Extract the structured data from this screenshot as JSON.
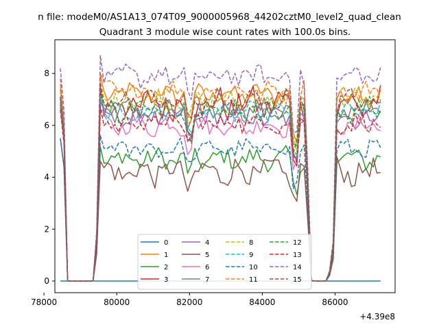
{
  "suptitle": "n file: modeM0/AS1A13_074T09_9000005968_44202cztM0_level2_quad_clean",
  "chart_data": {
    "type": "line",
    "title": "Quadrant 3 module wise count rates with 100.0s bins.",
    "xlabel": "",
    "ylabel": "",
    "x_offset_label": "+4.39e8",
    "xlim": [
      78300,
      87650
    ],
    "ylim": [
      -0.45,
      9.3
    ],
    "xticks": [
      78000,
      80000,
      82000,
      84000,
      86000
    ],
    "xtick_labels": [
      "78000",
      "80000",
      "82000",
      "84000",
      "86000"
    ],
    "yticks": [
      0,
      2,
      4,
      6,
      8
    ],
    "ytick_labels": [
      "0",
      "2",
      "4",
      "6",
      "8"
    ],
    "grid": false,
    "legend": {
      "placement": "lower center",
      "columns": 4
    },
    "x_start": 78450,
    "x_step": 100,
    "point_count": 89,
    "gaps": [
      [
        78650,
        79350
      ],
      [
        85350,
        85750
      ]
    ],
    "series": [
      {
        "name": "0",
        "color": "#1f77b4",
        "dash": "solid",
        "level": 0.0,
        "amp": 0.0,
        "start": 5.6
      },
      {
        "name": "1",
        "color": "#ff7f0e",
        "dash": "solid",
        "level": 7.2,
        "amp": 0.35,
        "start": 7.6
      },
      {
        "name": "2",
        "color": "#2ca02c",
        "dash": "solid",
        "level": 4.7,
        "amp": 0.35,
        "start": 7.0
      },
      {
        "name": "3",
        "color": "#d62728",
        "dash": "solid",
        "level": 6.8,
        "amp": 0.55,
        "start": 6.8
      },
      {
        "name": "4",
        "color": "#9467bd",
        "dash": "solid",
        "level": 6.3,
        "amp": 0.35,
        "start": 7.4
      },
      {
        "name": "5",
        "color": "#8c564b",
        "dash": "solid",
        "level": 4.2,
        "amp": 0.45,
        "start": 5.5
      },
      {
        "name": "6",
        "color": "#e377c2",
        "dash": "solid",
        "level": 6.0,
        "amp": 0.35,
        "start": 6.9
      },
      {
        "name": "7",
        "color": "#7f7f7f",
        "dash": "solid",
        "level": 6.6,
        "amp": 0.35,
        "start": 7.0
      },
      {
        "name": "8",
        "color": "#bcbd22",
        "dash": "dashed",
        "level": 7.0,
        "amp": 0.35,
        "start": 7.3
      },
      {
        "name": "9",
        "color": "#17becf",
        "dash": "dashed",
        "level": 6.5,
        "amp": 0.3,
        "start": 6.7
      },
      {
        "name": "10",
        "color": "#1f77b4",
        "dash": "dashed",
        "level": 5.1,
        "amp": 0.3,
        "start": 5.5
      },
      {
        "name": "11",
        "color": "#ff7f0e",
        "dash": "dashed",
        "level": 7.3,
        "amp": 0.35,
        "start": 7.8
      },
      {
        "name": "12",
        "color": "#2ca02c",
        "dash": "dashed",
        "level": 6.6,
        "amp": 0.4,
        "start": 7.1
      },
      {
        "name": "13",
        "color": "#d62728",
        "dash": "dashed",
        "level": 6.1,
        "amp": 0.35,
        "start": 6.6
      },
      {
        "name": "14",
        "color": "#9467bd",
        "dash": "dashed",
        "level": 7.9,
        "amp": 0.35,
        "start": 8.2
      },
      {
        "name": "15",
        "color": "#8c564b",
        "dash": "dashed",
        "level": 6.9,
        "amp": 0.4,
        "start": 7.1
      }
    ]
  }
}
